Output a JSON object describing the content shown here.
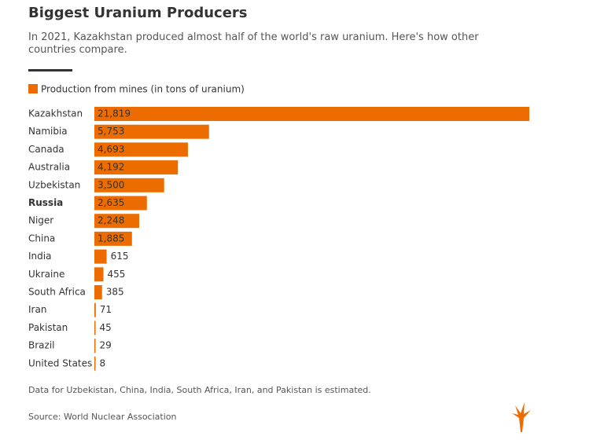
{
  "chart_data": {
    "type": "bar",
    "orientation": "horizontal",
    "title": "Biggest Uranium Producers",
    "subtitle": "In 2021, Kazakhstan produced almost half of the world's raw uranium. Here's how other countries compare.",
    "legend": "Production from mines (in tons of uranium)",
    "color": "#ec6c00",
    "highlight_index": 5,
    "categories": [
      "Kazakhstan",
      "Namibia",
      "Canada",
      "Australia",
      "Uzbekistan",
      "Russia",
      "Niger",
      "China",
      "India",
      "Ukraine",
      "South Africa",
      "Iran",
      "Pakistan",
      "Brazil",
      "United States"
    ],
    "values": [
      21819,
      5753,
      4693,
      4192,
      3500,
      2635,
      2248,
      1885,
      615,
      455,
      385,
      71,
      45,
      29,
      8
    ],
    "value_labels": [
      "21,819",
      "5,753",
      "4,693",
      "4,192",
      "3,500",
      "2,635",
      "2,248",
      "1,885",
      "615",
      "455",
      "385",
      "71",
      "45",
      "29",
      "8"
    ],
    "note": "Data for Uzbekistan, China, India, South Africa, Iran, and Pakistan is estimated.",
    "source": "Source: World Nuclear Association"
  }
}
